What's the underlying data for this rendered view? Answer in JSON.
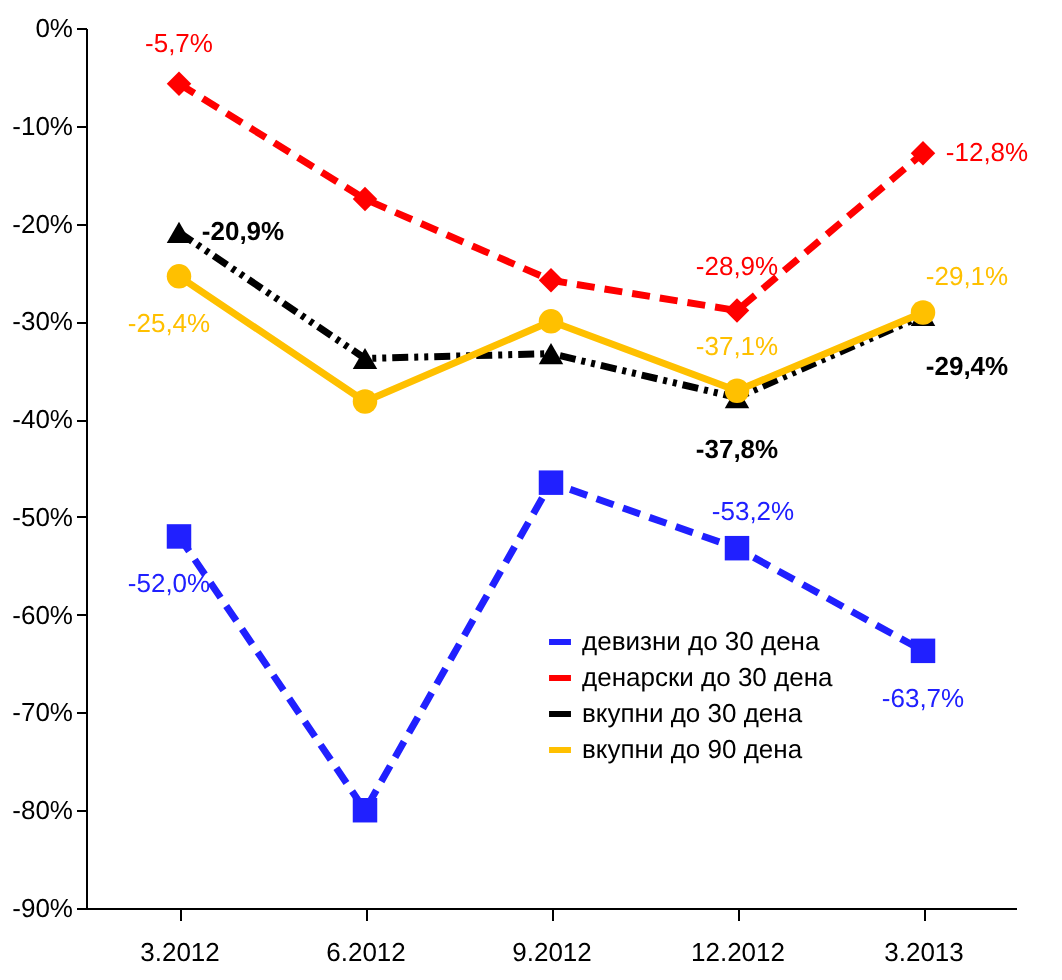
{
  "chart_data": {
    "type": "line",
    "categories": [
      "3.2012",
      "6.2012",
      "9.2012",
      "12.2012",
      "3.2013"
    ],
    "series": [
      {
        "name": "девизни до 30 дена",
        "color": "#2020ff",
        "marker": "square",
        "line_style": "dashed",
        "values": [
          -52.0,
          -80.0,
          -46.5,
          -53.2,
          -63.7
        ],
        "value_labels": [
          "-52,0%",
          null,
          null,
          "-53,2%",
          "-63,7%"
        ]
      },
      {
        "name": "денарски до 30 дена",
        "color": "#ff0000",
        "marker": "diamond",
        "line_style": "dashed",
        "values": [
          -5.7,
          -17.5,
          -25.8,
          -28.9,
          -12.8
        ],
        "value_labels": [
          "-5,7%",
          null,
          null,
          "-28,9%",
          "-12,8%"
        ]
      },
      {
        "name": "вкупни до 30 дена",
        "color": "#000000",
        "marker": "triangle",
        "line_style": "dotted",
        "values": [
          -20.9,
          -33.8,
          -33.3,
          -37.8,
          -29.4
        ],
        "value_labels": [
          "-20,9%",
          null,
          null,
          "-37,8%",
          "-29,4%"
        ]
      },
      {
        "name": "вкупни до 90 дена",
        "color": "#ffc000",
        "marker": "circle",
        "line_style": "solid",
        "values": [
          -25.4,
          -38.2,
          -30.0,
          -37.1,
          -29.1
        ],
        "value_labels": [
          "-25,4%",
          null,
          null,
          "-37,1%",
          "-29,1%"
        ]
      }
    ],
    "ylim": [
      -90,
      0
    ],
    "yticks": [
      {
        "value": 0,
        "label": "0%"
      },
      {
        "value": -10,
        "label": "-10%"
      },
      {
        "value": -20,
        "label": "-20%"
      },
      {
        "value": -30,
        "label": "-30%"
      },
      {
        "value": -40,
        "label": "-40%"
      },
      {
        "value": -50,
        "label": "-50%"
      },
      {
        "value": -60,
        "label": "-60%"
      },
      {
        "value": -70,
        "label": "-70%"
      },
      {
        "value": -80,
        "label": "-80%"
      },
      {
        "value": -90,
        "label": "-90%"
      }
    ],
    "grid": false,
    "legend": "bottom right"
  }
}
